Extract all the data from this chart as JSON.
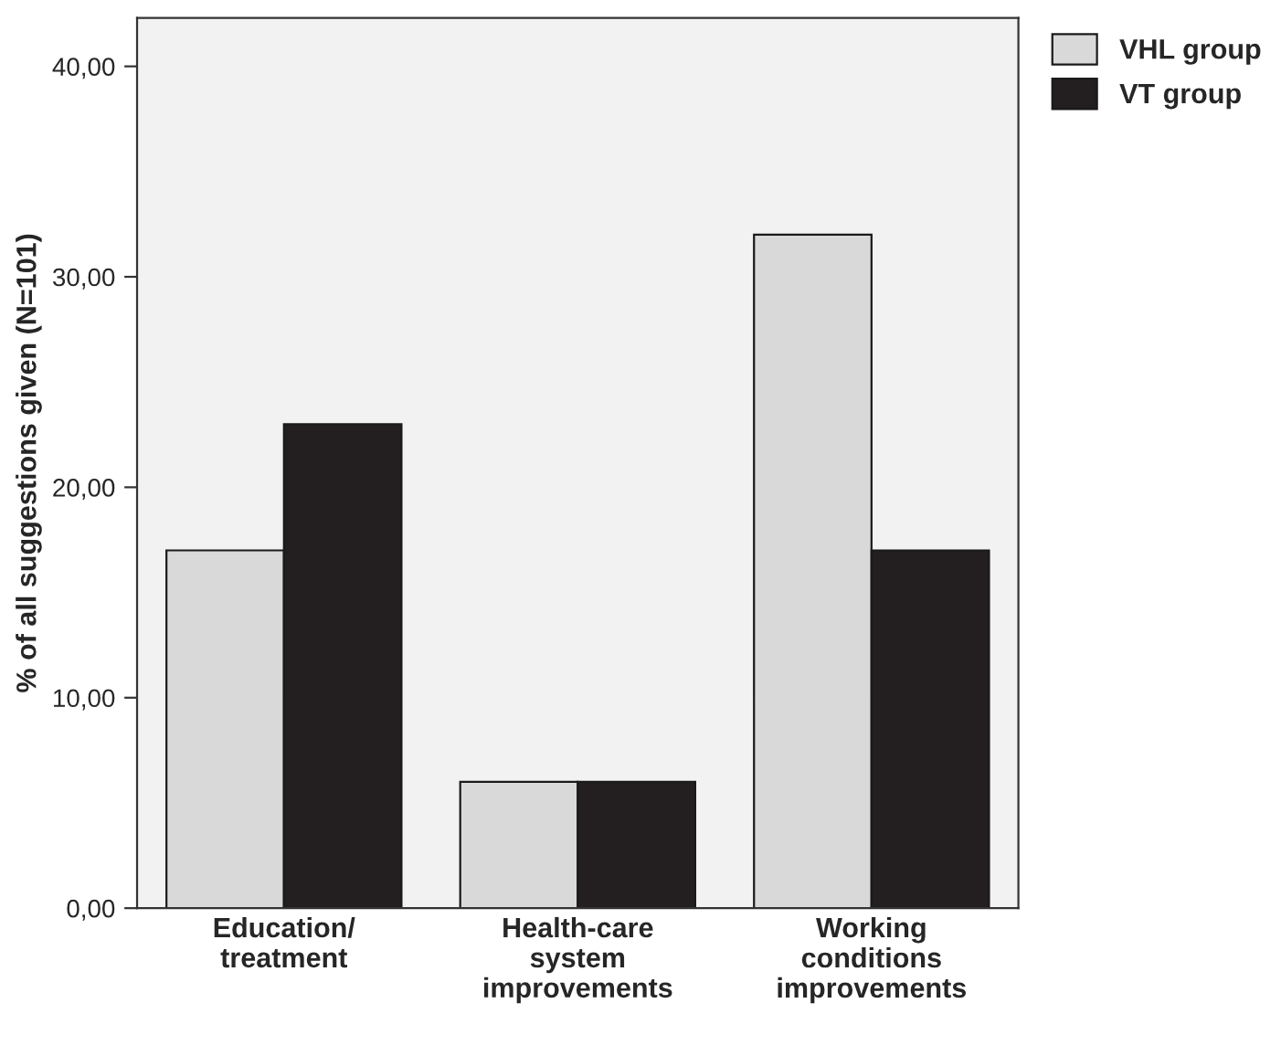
{
  "chart_data": {
    "type": "bar",
    "ylabel": "% of all suggestions given (N=101)",
    "categories": [
      "Education/\ntreatment",
      "Health-care\nsystem\nimprovements",
      "Working\nconditions\nimprovements"
    ],
    "series": [
      {
        "name": "VHL group",
        "color": "#d9d9d9",
        "values": [
          17,
          6,
          32
        ]
      },
      {
        "name": "VT group",
        "color": "#231f20",
        "values": [
          23,
          6,
          17
        ]
      }
    ],
    "ylim": [
      0,
      42.3
    ],
    "yticks": [
      {
        "value": 0,
        "label": "0,00"
      },
      {
        "value": 10,
        "label": "10,00"
      },
      {
        "value": 20,
        "label": "20,00"
      },
      {
        "value": 30,
        "label": "30,00"
      },
      {
        "value": 40,
        "label": "40,00"
      }
    ],
    "grid": false,
    "legend": "top right"
  }
}
